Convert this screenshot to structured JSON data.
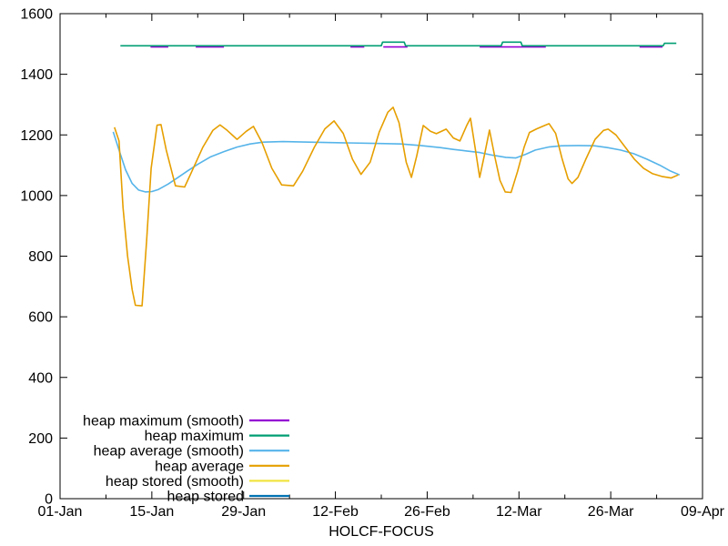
{
  "chart_data": {
    "type": "line",
    "title": "",
    "xlabel": "HOLCF-FOCUS",
    "ylabel": "",
    "x_unit": "days since 01-Jan",
    "xlim": [
      0,
      98
    ],
    "ylim": [
      0,
      1600
    ],
    "grid": false,
    "legend_position": "bottom-left-inside",
    "x_ticks": [
      {
        "day": 0,
        "label": "01-Jan"
      },
      {
        "day": 14,
        "label": "15-Jan"
      },
      {
        "day": 28,
        "label": "29-Jan"
      },
      {
        "day": 42,
        "label": "12-Feb"
      },
      {
        "day": 56,
        "label": "26-Feb"
      },
      {
        "day": 70,
        "label": "12-Mar"
      },
      {
        "day": 84,
        "label": "26-Mar"
      },
      {
        "day": 98,
        "label": "09-Apr"
      }
    ],
    "x_minor_days": [
      7,
      21,
      35,
      49,
      63,
      77,
      91
    ],
    "y_ticks": [
      {
        "value": 0,
        "label": "0"
      },
      {
        "value": 200,
        "label": "200"
      },
      {
        "value": 400,
        "label": "400"
      },
      {
        "value": 600,
        "label": "600"
      },
      {
        "value": 800,
        "label": "800"
      },
      {
        "value": 1000,
        "label": "1000"
      },
      {
        "value": 1200,
        "label": "1200"
      },
      {
        "value": 1400,
        "label": "1400"
      },
      {
        "value": 1600,
        "label": "1600"
      }
    ],
    "legend": [
      {
        "label": "heap maximum (smooth)",
        "color": "#9400d3"
      },
      {
        "label": "heap maximum",
        "color": "#009e73"
      },
      {
        "label": "heap average (smooth)",
        "color": "#56b4e9"
      },
      {
        "label": "heap average",
        "color": "#e69f00"
      },
      {
        "label": "heap stored (smooth)",
        "color": "#f0e442"
      },
      {
        "label": "heap stored",
        "color": "#0072b2"
      }
    ],
    "series": [
      {
        "name": "heap maximum (smooth)",
        "color": "#9400d3",
        "points": [
          [
            13.8,
            1490
          ],
          [
            16.5,
            1490
          ],
          null,
          [
            20.7,
            1490
          ],
          [
            25,
            1490
          ],
          null,
          [
            44.3,
            1490
          ],
          [
            46.4,
            1490
          ],
          null,
          [
            49.3,
            1490
          ],
          [
            53,
            1490
          ],
          null,
          [
            64,
            1490
          ],
          [
            74.1,
            1490
          ],
          null,
          [
            88.4,
            1490
          ],
          [
            91.9,
            1490
          ]
        ]
      },
      {
        "name": "heap maximum",
        "color": "#009e73",
        "points": [
          [
            9.2,
            1494
          ],
          [
            49,
            1494
          ],
          [
            49.2,
            1506
          ],
          [
            52.5,
            1506
          ],
          [
            52.7,
            1494
          ],
          [
            67.3,
            1494
          ],
          [
            67.5,
            1506
          ],
          [
            70.3,
            1506
          ],
          [
            70.5,
            1494
          ],
          [
            92,
            1494
          ],
          [
            92.2,
            1502
          ],
          [
            94,
            1502
          ]
        ]
      },
      {
        "name": "heap average (smooth)",
        "color": "#56b4e9",
        "points": [
          [
            8.1,
            1210
          ],
          [
            9,
            1150
          ],
          [
            10,
            1085
          ],
          [
            11,
            1040
          ],
          [
            12,
            1018
          ],
          [
            13,
            1012
          ],
          [
            14,
            1013
          ],
          [
            15,
            1020
          ],
          [
            16.5,
            1038
          ],
          [
            18,
            1060
          ],
          [
            19.5,
            1082
          ],
          [
            21,
            1103
          ],
          [
            23,
            1128
          ],
          [
            25,
            1145
          ],
          [
            27,
            1160
          ],
          [
            29,
            1170
          ],
          [
            31,
            1176
          ],
          [
            34,
            1178
          ],
          [
            38,
            1176
          ],
          [
            43,
            1174
          ],
          [
            48,
            1172
          ],
          [
            52,
            1170
          ],
          [
            55,
            1165
          ],
          [
            58,
            1158
          ],
          [
            60,
            1152
          ],
          [
            62,
            1147
          ],
          [
            64,
            1142
          ],
          [
            66,
            1133
          ],
          [
            68,
            1126
          ],
          [
            69.5,
            1124
          ],
          [
            71,
            1136
          ],
          [
            72.5,
            1150
          ],
          [
            74.5,
            1160
          ],
          [
            76.5,
            1164
          ],
          [
            79,
            1165
          ],
          [
            81.5,
            1164
          ],
          [
            83.5,
            1158
          ],
          [
            85.5,
            1150
          ],
          [
            87.5,
            1138
          ],
          [
            89.5,
            1120
          ],
          [
            91.5,
            1100
          ],
          [
            93,
            1082
          ],
          [
            94.5,
            1068
          ]
        ]
      },
      {
        "name": "heap average",
        "color": "#e69f00",
        "points": [
          [
            8.3,
            1225
          ],
          [
            9,
            1180
          ],
          [
            9.6,
            960
          ],
          [
            10.3,
            800
          ],
          [
            11,
            690
          ],
          [
            11.5,
            638
          ],
          [
            12.5,
            636
          ],
          [
            13.2,
            850
          ],
          [
            13.9,
            1090
          ],
          [
            14.8,
            1232
          ],
          [
            15.4,
            1234
          ],
          [
            16.2,
            1150
          ],
          [
            17.6,
            1032
          ],
          [
            19,
            1028
          ],
          [
            20,
            1075
          ],
          [
            21.8,
            1160
          ],
          [
            23.3,
            1215
          ],
          [
            24.4,
            1233
          ],
          [
            25.5,
            1215
          ],
          [
            27,
            1185
          ],
          [
            28.4,
            1212
          ],
          [
            29.5,
            1228
          ],
          [
            30.8,
            1175
          ],
          [
            32.3,
            1090
          ],
          [
            33.8,
            1035
          ],
          [
            35.6,
            1032
          ],
          [
            37,
            1080
          ],
          [
            38.8,
            1160
          ],
          [
            40.4,
            1220
          ],
          [
            41.8,
            1246
          ],
          [
            43.2,
            1205
          ],
          [
            44.6,
            1120
          ],
          [
            45.9,
            1070
          ],
          [
            47.3,
            1110
          ],
          [
            48.7,
            1210
          ],
          [
            50,
            1275
          ],
          [
            50.8,
            1291
          ],
          [
            51.7,
            1240
          ],
          [
            52.8,
            1110
          ],
          [
            53.6,
            1060
          ],
          [
            54.4,
            1130
          ],
          [
            55.4,
            1231
          ],
          [
            56.5,
            1212
          ],
          [
            57.4,
            1204
          ],
          [
            58.3,
            1213
          ],
          [
            58.9,
            1219
          ],
          [
            60,
            1190
          ],
          [
            61,
            1180
          ],
          [
            62,
            1230
          ],
          [
            62.6,
            1255
          ],
          [
            63.3,
            1160
          ],
          [
            64,
            1060
          ],
          [
            64.8,
            1140
          ],
          [
            65.5,
            1216
          ],
          [
            66.3,
            1130
          ],
          [
            67.1,
            1050
          ],
          [
            67.9,
            1012
          ],
          [
            68.8,
            1010
          ],
          [
            69.8,
            1080
          ],
          [
            70.8,
            1160
          ],
          [
            71.6,
            1208
          ],
          [
            72.7,
            1220
          ],
          [
            74,
            1232
          ],
          [
            74.6,
            1237
          ],
          [
            75.6,
            1205
          ],
          [
            76.6,
            1120
          ],
          [
            77.5,
            1055
          ],
          [
            78.1,
            1040
          ],
          [
            79,
            1060
          ],
          [
            80.2,
            1120
          ],
          [
            81.6,
            1185
          ],
          [
            82.9,
            1215
          ],
          [
            83.6,
            1219
          ],
          [
            84.8,
            1200
          ],
          [
            86.2,
            1160
          ],
          [
            87.6,
            1120
          ],
          [
            89,
            1090
          ],
          [
            90.4,
            1072
          ],
          [
            91.8,
            1063
          ],
          [
            93.2,
            1058
          ],
          [
            94.3,
            1068
          ]
        ]
      }
    ]
  }
}
